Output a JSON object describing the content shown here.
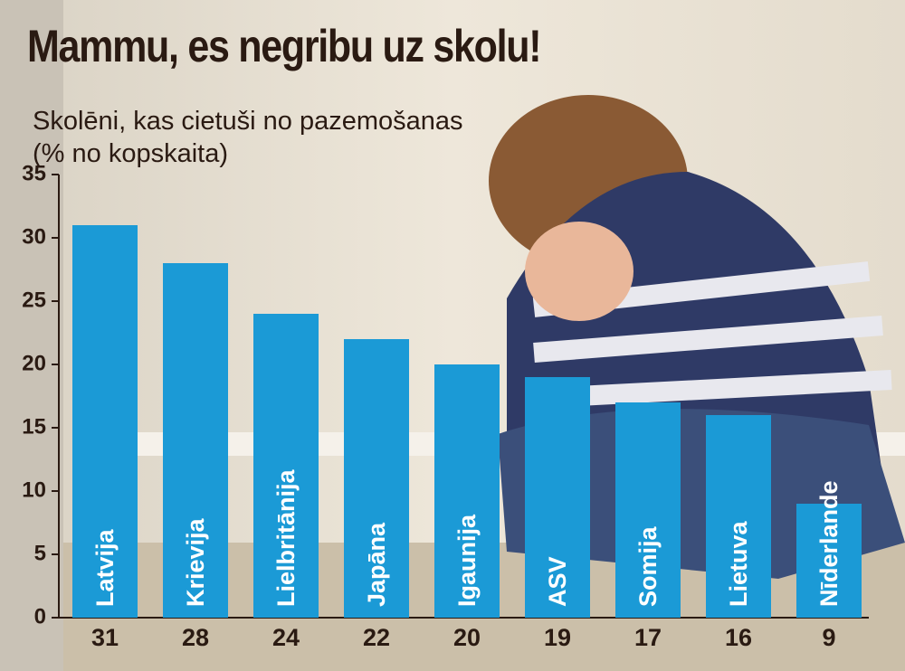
{
  "chart_data": {
    "type": "bar",
    "title": "Mammu, es negribu uz skolu!",
    "subtitle": "Skolēni, kas cietuši no pazemošanas (% no kopskaita)",
    "categories": [
      "Latvija",
      "Krievija",
      "Lielbritānija",
      "Japāna",
      "Igaunija",
      "ASV",
      "Somija",
      "Lietuva",
      "Nīderlande"
    ],
    "values": [
      31,
      28,
      24,
      22,
      20,
      19,
      17,
      16,
      9
    ],
    "color": "#1b9ad6",
    "ylim": [
      0,
      35
    ],
    "yticks": [
      0,
      5,
      10,
      15,
      20,
      25,
      30,
      35
    ],
    "grid": false
  }
}
